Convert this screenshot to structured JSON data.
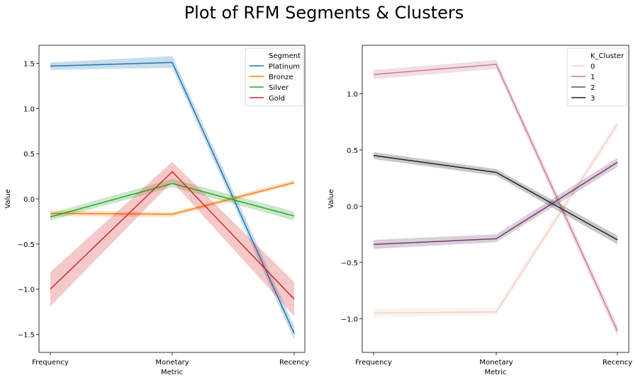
{
  "suptitle": "Plot of RFM Segments & Clusters",
  "chart_data": [
    {
      "type": "line",
      "xlabel": "Metric",
      "ylabel": "Value",
      "categories": [
        "Frequency",
        "Monetary",
        "Recency"
      ],
      "ylim": [
        -1.7,
        1.7
      ],
      "yticks": [
        1.5,
        1.0,
        0.5,
        0.0,
        -0.5,
        -1.0,
        -1.5
      ],
      "ytick_labels": [
        "1.5",
        "1.0",
        "0.5",
        "0.0",
        "−0.5",
        "−1.0",
        "−1.5"
      ],
      "grid": false,
      "legend": {
        "title": "Segment",
        "placement": "top-right"
      },
      "series": [
        {
          "name": "Platinum",
          "color": "#1f77b4",
          "values": [
            1.47,
            1.51,
            -1.49
          ],
          "ci_low": [
            1.43,
            1.45,
            -1.56
          ],
          "ci_high": [
            1.51,
            1.58,
            -1.41
          ]
        },
        {
          "name": "Bronze",
          "color": "#ff7f0e",
          "values": [
            -0.16,
            -0.17,
            0.18
          ],
          "ci_low": [
            -0.19,
            -0.2,
            0.16
          ],
          "ci_high": [
            -0.13,
            -0.15,
            0.21
          ]
        },
        {
          "name": "Silver",
          "color": "#2ca02c",
          "values": [
            -0.2,
            0.17,
            -0.19
          ],
          "ci_low": [
            -0.24,
            0.13,
            -0.24
          ],
          "ci_high": [
            -0.16,
            0.22,
            -0.14
          ]
        },
        {
          "name": "Gold",
          "color": "#d62728",
          "values": [
            -1.0,
            0.3,
            -1.11
          ],
          "ci_low": [
            -1.19,
            0.19,
            -1.3
          ],
          "ci_high": [
            -0.81,
            0.41,
            -0.92
          ]
        }
      ]
    },
    {
      "type": "line",
      "xlabel": "Metric",
      "ylabel": "Value",
      "categories": [
        "Frequency",
        "Monetary",
        "Recency"
      ],
      "ylim": [
        -1.3,
        1.43
      ],
      "yticks": [
        1.0,
        0.5,
        0.0,
        -0.5,
        -1.0
      ],
      "ytick_labels": [
        "1.0",
        "0.5",
        "0.0",
        "−0.5",
        "−1.0"
      ],
      "grid": false,
      "legend": {
        "title": "K_Cluster",
        "placement": "top-right"
      },
      "series": [
        {
          "name": "0",
          "color": "#f1d0c5",
          "values": [
            -0.95,
            -0.94,
            0.73
          ],
          "ci_low": [
            -0.99,
            -0.97,
            0.69
          ],
          "ci_high": [
            -0.91,
            -0.9,
            0.77
          ]
        },
        {
          "name": "1",
          "color": "#c97b93",
          "values": [
            1.17,
            1.26,
            -1.11
          ],
          "ci_low": [
            1.13,
            1.22,
            -1.16
          ],
          "ci_high": [
            1.21,
            1.3,
            -1.06
          ]
        },
        {
          "name": "2",
          "color": "#6f3f6d",
          "values": [
            -0.34,
            -0.29,
            0.39
          ],
          "ci_low": [
            -0.38,
            -0.32,
            0.35
          ],
          "ci_high": [
            -0.3,
            -0.25,
            0.43
          ]
        },
        {
          "name": "3",
          "color": "#222228",
          "values": [
            0.45,
            0.3,
            -0.3
          ],
          "ci_low": [
            0.42,
            0.27,
            -0.34
          ],
          "ci_high": [
            0.48,
            0.33,
            -0.26
          ]
        }
      ]
    }
  ]
}
